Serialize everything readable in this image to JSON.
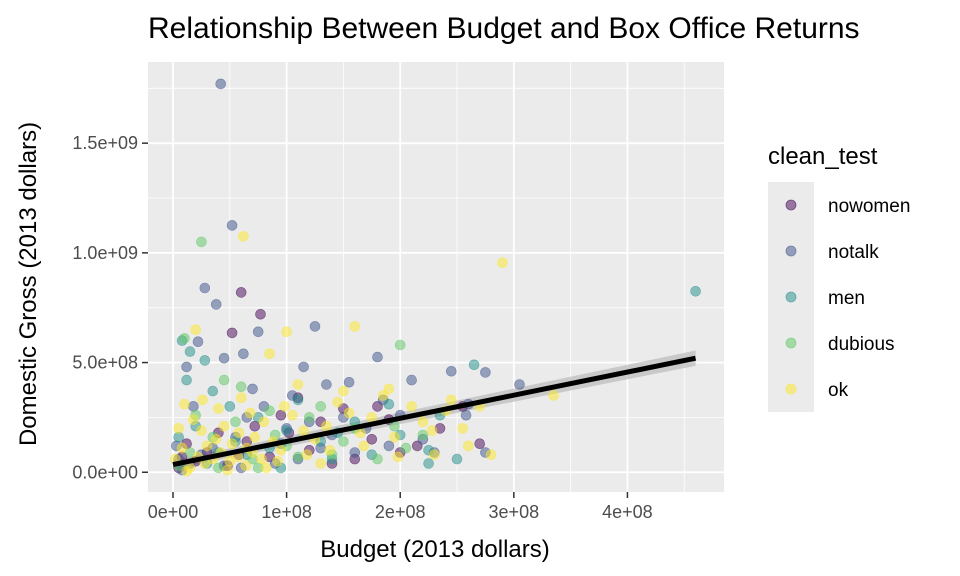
{
  "chart_data": {
    "type": "scatter",
    "title": "Relationship Between Budget and Box Office Returns",
    "xlabel": "Budget (2013 dollars)",
    "ylabel": "Domestic Gross (2013 dollars)",
    "xlim": [
      -22000000,
      485000000
    ],
    "ylim": [
      -90000000,
      1870000000
    ],
    "x_ticks": [
      0,
      100000000,
      200000000,
      300000000,
      400000000
    ],
    "x_tick_labels": [
      "0e+00",
      "1e+08",
      "2e+08",
      "3e+08",
      "4e+08"
    ],
    "y_ticks": [
      0,
      500000000,
      1000000000,
      1500000000
    ],
    "y_tick_labels": [
      "0.0e+00",
      "5.0e+08",
      "1.0e+09",
      "1.5e+09"
    ],
    "grid": true,
    "legend": {
      "title": "clean_test",
      "position": "right",
      "entries": [
        "nowomen",
        "notalk",
        "men",
        "dubious",
        "ok"
      ]
    },
    "colors": {
      "nowomen": "#440154",
      "notalk": "#3B528B",
      "men": "#21908C",
      "dubious": "#5DC863",
      "ok": "#FDE725",
      "panel": "#EBEBEB",
      "gridline": "#FFFFFF",
      "trend": "#000000",
      "band": "#BDBDBD"
    },
    "trend": {
      "method": "lm",
      "x": [
        0,
        460000000
      ],
      "y": [
        35000000,
        520000000
      ],
      "ci_lower": [
        15000000,
        485000000
      ],
      "ci_upper": [
        55000000,
        555000000
      ]
    },
    "series": [
      {
        "name": "nowomen",
        "points": [
          [
            60000000,
            820000000
          ],
          [
            77000000,
            720000000
          ],
          [
            52000000,
            635000000
          ],
          [
            110000000,
            340000000
          ],
          [
            150000000,
            290000000
          ],
          [
            190000000,
            240000000
          ],
          [
            215000000,
            120000000
          ],
          [
            270000000,
            130000000
          ],
          [
            255000000,
            300000000
          ],
          [
            20000000,
            50000000
          ],
          [
            40000000,
            180000000
          ],
          [
            85000000,
            70000000
          ],
          [
            130000000,
            230000000
          ],
          [
            175000000,
            150000000
          ],
          [
            95000000,
            260000000
          ],
          [
            5000000,
            20000000
          ],
          [
            30000000,
            90000000
          ],
          [
            65000000,
            140000000
          ],
          [
            120000000,
            100000000
          ],
          [
            160000000,
            60000000
          ],
          [
            200000000,
            90000000
          ],
          [
            12000000,
            130000000
          ],
          [
            48000000,
            30000000
          ],
          [
            102000000,
            180000000
          ],
          [
            140000000,
            40000000
          ],
          [
            235000000,
            200000000
          ],
          [
            72000000,
            210000000
          ],
          [
            180000000,
            300000000
          ],
          [
            8000000,
            70000000
          ],
          [
            58000000,
            80000000
          ]
        ]
      },
      {
        "name": "notalk",
        "points": [
          [
            42000000,
            1770000000
          ],
          [
            52000000,
            1125000000
          ],
          [
            28000000,
            840000000
          ],
          [
            38000000,
            765000000
          ],
          [
            125000000,
            665000000
          ],
          [
            75000000,
            640000000
          ],
          [
            12000000,
            480000000
          ],
          [
            22000000,
            595000000
          ],
          [
            45000000,
            520000000
          ],
          [
            105000000,
            350000000
          ],
          [
            135000000,
            400000000
          ],
          [
            155000000,
            410000000
          ],
          [
            180000000,
            525000000
          ],
          [
            210000000,
            420000000
          ],
          [
            245000000,
            460000000
          ],
          [
            275000000,
            455000000
          ],
          [
            305000000,
            400000000
          ],
          [
            258000000,
            260000000
          ],
          [
            260000000,
            310000000
          ],
          [
            220000000,
            150000000
          ],
          [
            190000000,
            120000000
          ],
          [
            160000000,
            90000000
          ],
          [
            140000000,
            170000000
          ],
          [
            120000000,
            230000000
          ],
          [
            100000000,
            200000000
          ],
          [
            80000000,
            300000000
          ],
          [
            65000000,
            250000000
          ],
          [
            55000000,
            160000000
          ],
          [
            35000000,
            110000000
          ],
          [
            25000000,
            80000000
          ],
          [
            15000000,
            40000000
          ],
          [
            5000000,
            60000000
          ],
          [
            3000000,
            120000000
          ],
          [
            90000000,
            40000000
          ],
          [
            110000000,
            60000000
          ],
          [
            130000000,
            110000000
          ],
          [
            170000000,
            200000000
          ],
          [
            200000000,
            260000000
          ],
          [
            230000000,
            90000000
          ],
          [
            275000000,
            90000000
          ],
          [
            18000000,
            300000000
          ],
          [
            70000000,
            380000000
          ],
          [
            95000000,
            130000000
          ],
          [
            150000000,
            250000000
          ],
          [
            185000000,
            330000000
          ],
          [
            8000000,
            10000000
          ],
          [
            45000000,
            30000000
          ],
          [
            60000000,
            20000000
          ],
          [
            115000000,
            480000000
          ],
          [
            62000000,
            540000000
          ]
        ]
      },
      {
        "name": "men",
        "points": [
          [
            460000000,
            825000000
          ],
          [
            265000000,
            490000000
          ],
          [
            8000000,
            600000000
          ],
          [
            15000000,
            550000000
          ],
          [
            28000000,
            510000000
          ],
          [
            12000000,
            420000000
          ],
          [
            35000000,
            370000000
          ],
          [
            50000000,
            300000000
          ],
          [
            75000000,
            250000000
          ],
          [
            100000000,
            190000000
          ],
          [
            130000000,
            140000000
          ],
          [
            160000000,
            230000000
          ],
          [
            200000000,
            170000000
          ],
          [
            225000000,
            100000000
          ],
          [
            250000000,
            60000000
          ],
          [
            225000000,
            40000000
          ],
          [
            175000000,
            80000000
          ],
          [
            140000000,
            60000000
          ],
          [
            85000000,
            110000000
          ],
          [
            55000000,
            140000000
          ],
          [
            40000000,
            90000000
          ],
          [
            20000000,
            210000000
          ],
          [
            5000000,
            160000000
          ],
          [
            190000000,
            310000000
          ],
          [
            110000000,
            330000000
          ],
          [
            65000000,
            80000000
          ],
          [
            30000000,
            40000000
          ],
          [
            145000000,
            180000000
          ],
          [
            235000000,
            260000000
          ],
          [
            95000000,
            20000000
          ]
        ]
      },
      {
        "name": "dubious",
        "points": [
          [
            25000000,
            1050000000
          ],
          [
            200000000,
            580000000
          ],
          [
            10000000,
            610000000
          ],
          [
            45000000,
            420000000
          ],
          [
            60000000,
            390000000
          ],
          [
            85000000,
            280000000
          ],
          [
            120000000,
            250000000
          ],
          [
            160000000,
            200000000
          ],
          [
            180000000,
            60000000
          ],
          [
            220000000,
            170000000
          ],
          [
            195000000,
            210000000
          ],
          [
            140000000,
            80000000
          ],
          [
            100000000,
            120000000
          ],
          [
            70000000,
            60000000
          ],
          [
            35000000,
            160000000
          ],
          [
            15000000,
            90000000
          ],
          [
            5000000,
            30000000
          ],
          [
            55000000,
            230000000
          ],
          [
            90000000,
            170000000
          ],
          [
            130000000,
            300000000
          ],
          [
            150000000,
            140000000
          ],
          [
            205000000,
            110000000
          ],
          [
            40000000,
            20000000
          ],
          [
            75000000,
            20000000
          ],
          [
            110000000,
            70000000
          ],
          [
            20000000,
            260000000
          ]
        ]
      },
      {
        "name": "ok",
        "points": [
          [
            290000000,
            955000000
          ],
          [
            62000000,
            1075000000
          ],
          [
            20000000,
            650000000
          ],
          [
            100000000,
            640000000
          ],
          [
            160000000,
            665000000
          ],
          [
            85000000,
            540000000
          ],
          [
            335000000,
            350000000
          ],
          [
            280000000,
            80000000
          ],
          [
            270000000,
            300000000
          ],
          [
            240000000,
            280000000
          ],
          [
            230000000,
            80000000
          ],
          [
            5000000,
            200000000
          ],
          [
            10000000,
            310000000
          ],
          [
            18000000,
            240000000
          ],
          [
            25000000,
            190000000
          ],
          [
            30000000,
            120000000
          ],
          [
            38000000,
            150000000
          ],
          [
            45000000,
            210000000
          ],
          [
            52000000,
            130000000
          ],
          [
            58000000,
            180000000
          ],
          [
            65000000,
            110000000
          ],
          [
            72000000,
            160000000
          ],
          [
            80000000,
            230000000
          ],
          [
            88000000,
            140000000
          ],
          [
            95000000,
            100000000
          ],
          [
            105000000,
            260000000
          ],
          [
            115000000,
            190000000
          ],
          [
            125000000,
            150000000
          ],
          [
            135000000,
            210000000
          ],
          [
            145000000,
            320000000
          ],
          [
            155000000,
            270000000
          ],
          [
            165000000,
            180000000
          ],
          [
            175000000,
            250000000
          ],
          [
            185000000,
            350000000
          ],
          [
            195000000,
            160000000
          ],
          [
            210000000,
            300000000
          ],
          [
            220000000,
            230000000
          ],
          [
            245000000,
            330000000
          ],
          [
            260000000,
            120000000
          ],
          [
            2000000,
            60000000
          ],
          [
            8000000,
            110000000
          ],
          [
            15000000,
            20000000
          ],
          [
            22000000,
            70000000
          ],
          [
            28000000,
            40000000
          ],
          [
            35000000,
            60000000
          ],
          [
            42000000,
            90000000
          ],
          [
            50000000,
            50000000
          ],
          [
            57000000,
            70000000
          ],
          [
            64000000,
            30000000
          ],
          [
            70000000,
            90000000
          ],
          [
            78000000,
            60000000
          ],
          [
            92000000,
            50000000
          ],
          [
            118000000,
            80000000
          ],
          [
            138000000,
            100000000
          ],
          [
            168000000,
            120000000
          ],
          [
            198000000,
            70000000
          ],
          [
            228000000,
            190000000
          ],
          [
            40000000,
            290000000
          ],
          [
            60000000,
            340000000
          ],
          [
            110000000,
            400000000
          ],
          [
            150000000,
            370000000
          ],
          [
            190000000,
            380000000
          ],
          [
            255000000,
            200000000
          ],
          [
            12000000,
            5000000
          ],
          [
            48000000,
            10000000
          ],
          [
            82000000,
            20000000
          ],
          [
            130000000,
            40000000
          ],
          [
            26000000,
            330000000
          ],
          [
            68000000,
            270000000
          ],
          [
            98000000,
            300000000
          ]
        ]
      }
    ]
  }
}
